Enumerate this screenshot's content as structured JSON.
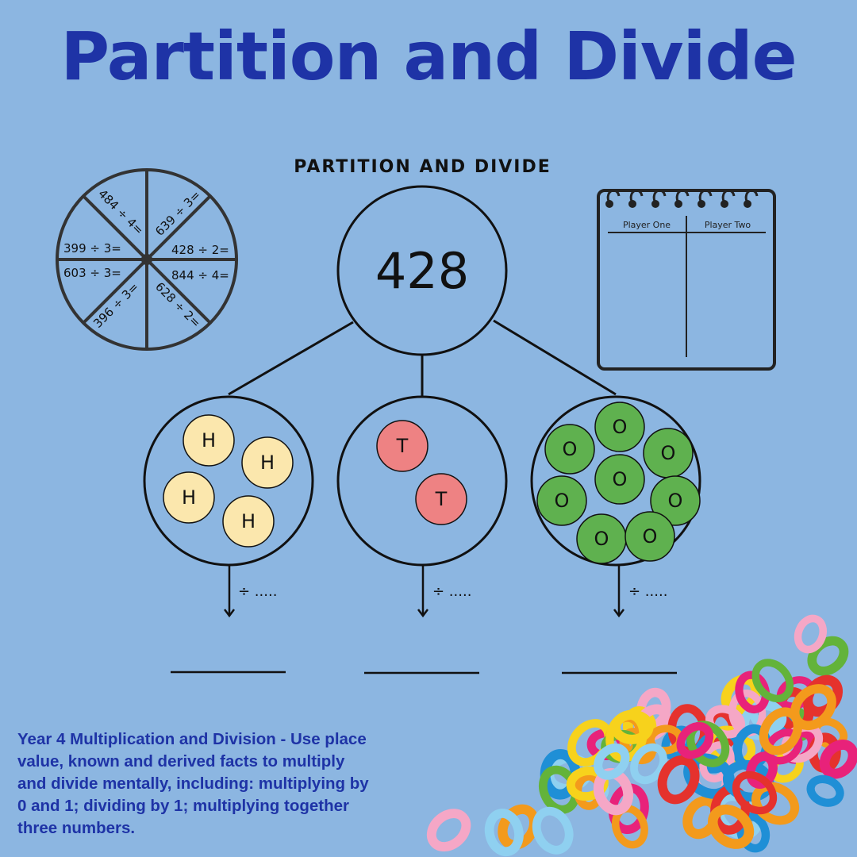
{
  "title": "Partition and Divide",
  "subtitle": "PARTITION AND DIVIDE",
  "wheel": {
    "segments": [
      "484 ÷ 4=",
      "639 ÷ 3=",
      "428 ÷ 2=",
      "844 ÷ 4=",
      "628 ÷ 2=",
      "396 ÷ 3=",
      "603 ÷ 3=",
      "399 ÷ 3="
    ]
  },
  "notepad": {
    "columns": [
      "Player One",
      "Player Two"
    ]
  },
  "tree": {
    "root_number": "428",
    "hundreds": {
      "label": "H",
      "count": 4,
      "color": "#fbe7ad"
    },
    "tens": {
      "label": "T",
      "count": 2,
      "color": "#ee8283"
    },
    "ones": {
      "label": "O",
      "count": 8,
      "color": "#5fb14f"
    },
    "divide_label": "÷ ....."
  },
  "objective": "Year 4 Multiplication and Division -  Use place value, known and derived facts to multiply and divide mentally, including: multiplying by 0 and 1; dividing by 1; multiplying together three numbers.",
  "colors": {
    "background": "#8cb6e1",
    "title": "#1e33a6"
  }
}
